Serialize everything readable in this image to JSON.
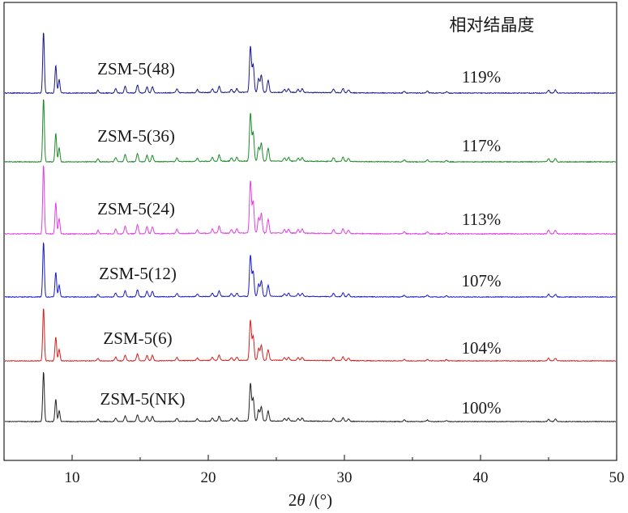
{
  "chart_data": {
    "type": "line",
    "title": "",
    "xlabel_prefix": "2",
    "xlabel_theta": "θ",
    "xlabel_unit": " /(°)",
    "ylabel": "",
    "xlim": [
      5,
      50
    ],
    "xticks": [
      10,
      20,
      30,
      40,
      50
    ],
    "xtick_labels": [
      "10",
      "20",
      "30",
      "40",
      "50"
    ],
    "grid": false,
    "column_header": "相对结晶度",
    "peaks": [
      [
        7.9,
        1.0
      ],
      [
        8.8,
        0.45
      ],
      [
        9.05,
        0.22
      ],
      [
        11.9,
        0.05
      ],
      [
        13.2,
        0.07
      ],
      [
        13.9,
        0.11
      ],
      [
        14.8,
        0.13
      ],
      [
        15.5,
        0.1
      ],
      [
        15.9,
        0.1
      ],
      [
        17.7,
        0.06
      ],
      [
        19.2,
        0.05
      ],
      [
        20.3,
        0.06
      ],
      [
        20.8,
        0.1
      ],
      [
        21.7,
        0.05
      ],
      [
        22.1,
        0.06
      ],
      [
        23.1,
        0.75
      ],
      [
        23.3,
        0.45
      ],
      [
        23.7,
        0.22
      ],
      [
        23.9,
        0.28
      ],
      [
        24.4,
        0.2
      ],
      [
        25.6,
        0.05
      ],
      [
        25.9,
        0.06
      ],
      [
        26.6,
        0.05
      ],
      [
        26.9,
        0.06
      ],
      [
        29.2,
        0.06
      ],
      [
        29.9,
        0.07
      ],
      [
        30.3,
        0.05
      ],
      [
        34.4,
        0.03
      ],
      [
        36.1,
        0.03
      ],
      [
        37.5,
        0.02
      ],
      [
        45.0,
        0.05
      ],
      [
        45.5,
        0.05
      ]
    ],
    "series": [
      {
        "name": "ZSM-5(48)",
        "crystallinity": "119%",
        "color": "#1a1a8c",
        "scale": 1.0
      },
      {
        "name": "ZSM-5(36)",
        "crystallinity": "117%",
        "color": "#1f8a2a",
        "scale": 1.0
      },
      {
        "name": "ZSM-5(24)",
        "crystallinity": "113%",
        "color": "#e040e0",
        "scale": 1.05
      },
      {
        "name": "ZSM-5(12)",
        "crystallinity": "107%",
        "color": "#1a1acc",
        "scale": 0.9
      },
      {
        "name": "ZSM-5(6)",
        "crystallinity": "104%",
        "color": "#d42020",
        "scale": 0.85
      },
      {
        "name": "ZSM-5(NK)",
        "crystallinity": "100%",
        "color": "#222222",
        "scale": 0.82
      }
    ]
  }
}
